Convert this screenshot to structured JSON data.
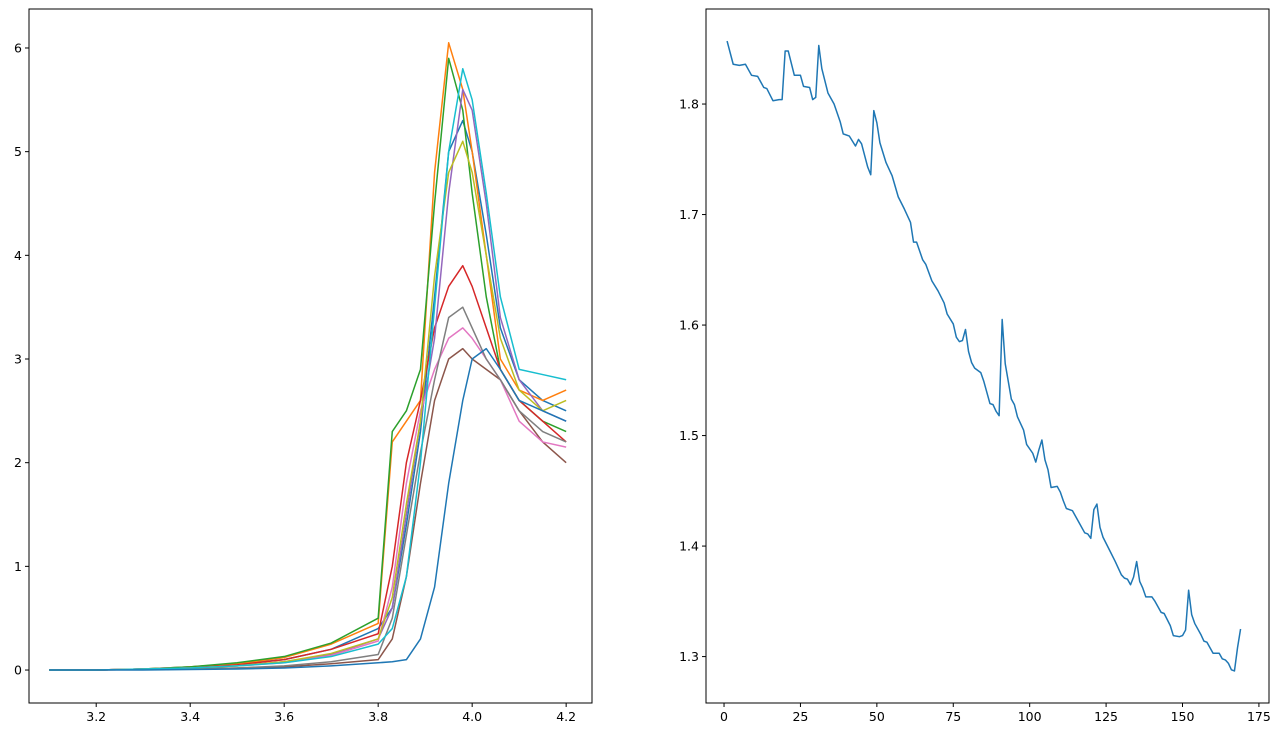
{
  "chart_data": [
    {
      "type": "line",
      "x": [
        3.1,
        3.2,
        3.3,
        3.4,
        3.5,
        3.6,
        3.7,
        3.8,
        3.83,
        3.86,
        3.89,
        3.92,
        3.95,
        3.98,
        4.0,
        4.03,
        4.06,
        4.1,
        4.15,
        4.2
      ],
      "series": [
        {
          "color": "#1f77b4",
          "values": [
            0,
            0,
            0.01,
            0.03,
            0.06,
            0.1,
            0.2,
            0.4,
            0.6,
            1.4,
            2.3,
            3.6,
            5.0,
            5.3,
            5.0,
            4.2,
            3.3,
            2.8,
            2.6,
            2.5
          ]
        },
        {
          "color": "#ff7f0e",
          "values": [
            0,
            0,
            0.01,
            0.03,
            0.06,
            0.12,
            0.25,
            0.45,
            2.2,
            2.4,
            2.6,
            4.8,
            6.05,
            5.6,
            5.0,
            4.0,
            3.0,
            2.7,
            2.6,
            2.7
          ]
        },
        {
          "color": "#2ca02c",
          "values": [
            0,
            0,
            0.01,
            0.03,
            0.07,
            0.13,
            0.26,
            0.5,
            2.3,
            2.5,
            2.9,
            4.5,
            5.9,
            5.4,
            4.6,
            3.6,
            2.9,
            2.6,
            2.4,
            2.3
          ]
        },
        {
          "color": "#d62728",
          "values": [
            0,
            0,
            0.01,
            0.02,
            0.05,
            0.1,
            0.2,
            0.35,
            1.0,
            2.0,
            2.6,
            3.3,
            3.7,
            3.9,
            3.7,
            3.3,
            2.9,
            2.6,
            2.4,
            2.2
          ]
        },
        {
          "color": "#9467bd",
          "values": [
            0,
            0,
            0.01,
            0.02,
            0.04,
            0.08,
            0.15,
            0.3,
            0.6,
            1.5,
            2.4,
            3.2,
            4.6,
            5.6,
            5.4,
            4.5,
            3.4,
            2.8,
            2.5,
            2.4
          ]
        },
        {
          "color": "#8c564b",
          "values": [
            0,
            0,
            0.005,
            0.01,
            0.02,
            0.03,
            0.06,
            0.1,
            0.3,
            0.9,
            1.8,
            2.6,
            3.0,
            3.1,
            3.0,
            2.9,
            2.8,
            2.5,
            2.2,
            2.0
          ]
        },
        {
          "color": "#e377c2",
          "values": [
            0,
            0,
            0.01,
            0.02,
            0.04,
            0.07,
            0.14,
            0.28,
            0.8,
            1.8,
            2.5,
            2.9,
            3.2,
            3.3,
            3.2,
            3.0,
            2.8,
            2.4,
            2.2,
            2.15
          ]
        },
        {
          "color": "#7f7f7f",
          "values": [
            0,
            0,
            0.005,
            0.01,
            0.02,
            0.04,
            0.08,
            0.15,
            0.5,
            1.3,
            2.1,
            2.8,
            3.4,
            3.5,
            3.3,
            3.0,
            2.8,
            2.5,
            2.3,
            2.2
          ]
        },
        {
          "color": "#bcbd22",
          "values": [
            0,
            0,
            0.01,
            0.02,
            0.04,
            0.08,
            0.16,
            0.3,
            0.7,
            1.6,
            2.4,
            3.8,
            4.8,
            5.1,
            4.8,
            4.0,
            3.2,
            2.7,
            2.5,
            2.6
          ]
        },
        {
          "color": "#17becf",
          "values": [
            0,
            0,
            0.01,
            0.02,
            0.04,
            0.07,
            0.13,
            0.25,
            0.4,
            0.9,
            2.0,
            3.5,
            5.0,
            5.8,
            5.5,
            4.6,
            3.6,
            2.9,
            2.85,
            2.8
          ]
        },
        {
          "color": "#1f77b4",
          "values": [
            0,
            0,
            0,
            0.005,
            0.01,
            0.02,
            0.04,
            0.07,
            0.08,
            0.1,
            0.3,
            0.8,
            1.8,
            2.6,
            3.0,
            3.1,
            2.9,
            2.6,
            2.5,
            2.4
          ]
        }
      ],
      "xlim": [
        3.057,
        4.255
      ],
      "ylim": [
        -0.318,
        6.376
      ],
      "xticks": [
        3.2,
        3.4,
        3.6,
        3.8,
        {
          "value": 4,
          "label": "4.0"
        },
        4.2
      ],
      "yticks": [
        0,
        1,
        2,
        3,
        4,
        5,
        6
      ]
    },
    {
      "type": "line",
      "x": [
        1,
        3,
        5,
        7,
        9,
        11,
        13,
        14,
        16,
        18,
        19,
        20,
        21,
        23,
        25,
        26,
        28,
        29,
        30,
        31,
        32,
        34,
        36,
        38,
        39,
        41,
        43,
        44,
        45,
        47,
        48,
        49,
        50,
        51,
        53,
        55,
        57,
        59,
        61,
        62,
        63,
        65,
        66,
        68,
        70,
        72,
        73,
        75,
        76,
        77,
        78,
        79,
        80,
        81,
        82,
        84,
        85,
        87,
        88,
        89,
        90,
        91,
        92,
        94,
        95,
        96,
        98,
        99,
        101,
        102,
        103,
        104,
        105,
        106,
        107,
        109,
        110,
        111,
        112,
        114,
        116,
        118,
        119,
        120,
        121,
        122,
        123,
        124,
        126,
        128,
        130,
        131,
        132,
        133,
        134,
        135,
        136,
        137,
        138,
        140,
        141,
        143,
        144,
        146,
        147,
        149,
        150,
        151,
        152,
        153,
        154,
        156,
        157,
        158,
        160,
        162,
        163,
        164,
        165,
        166,
        167,
        168,
        169
      ],
      "series": [
        {
          "color": "#1f77b4",
          "values": [
            1.857,
            1.836,
            1.835,
            1.836,
            1.826,
            1.825,
            1.815,
            1.814,
            1.803,
            1.804,
            1.804,
            1.848,
            1.848,
            1.826,
            1.826,
            1.816,
            1.815,
            1.804,
            1.806,
            1.853,
            1.832,
            1.81,
            1.8,
            1.784,
            1.773,
            1.771,
            1.762,
            1.768,
            1.764,
            1.743,
            1.736,
            1.794,
            1.783,
            1.765,
            1.747,
            1.735,
            1.716,
            1.705,
            1.693,
            1.675,
            1.675,
            1.659,
            1.655,
            1.64,
            1.631,
            1.62,
            1.61,
            1.601,
            1.589,
            1.585,
            1.586,
            1.596,
            1.576,
            1.566,
            1.561,
            1.557,
            1.549,
            1.529,
            1.528,
            1.522,
            1.518,
            1.605,
            1.565,
            1.533,
            1.528,
            1.517,
            1.505,
            1.492,
            1.484,
            1.476,
            1.487,
            1.496,
            1.478,
            1.469,
            1.453,
            1.454,
            1.449,
            1.441,
            1.434,
            1.432,
            1.422,
            1.412,
            1.411,
            1.407,
            1.433,
            1.438,
            1.417,
            1.408,
            1.397,
            1.386,
            1.374,
            1.371,
            1.37,
            1.365,
            1.372,
            1.386,
            1.368,
            1.362,
            1.354,
            1.354,
            1.35,
            1.34,
            1.339,
            1.328,
            1.319,
            1.318,
            1.319,
            1.324,
            1.36,
            1.338,
            1.33,
            1.32,
            1.314,
            1.313,
            1.303,
            1.303,
            1.298,
            1.297,
            1.294,
            1.288,
            1.287,
            1.308,
            1.325
          ]
        }
      ],
      "xlim": [
        -5.9,
        178.3
      ],
      "ylim": [
        1.258,
        1.886
      ],
      "xticks": [
        0,
        25,
        50,
        75,
        100,
        125,
        150,
        175
      ],
      "yticks": [
        1.3,
        1.4,
        1.5,
        1.6,
        1.7,
        1.8
      ]
    }
  ]
}
